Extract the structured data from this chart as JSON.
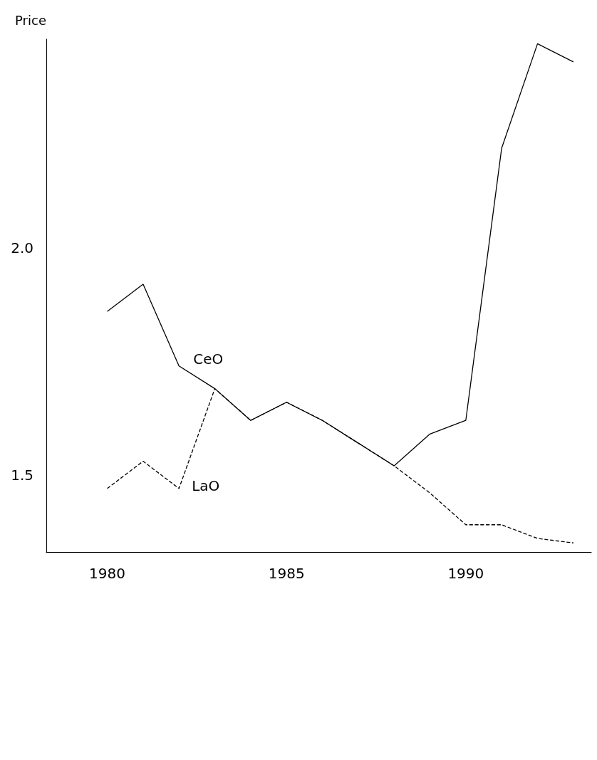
{
  "chart_data": {
    "type": "line",
    "ylabel": "Price",
    "x": [
      1980,
      1981,
      1982,
      1983,
      1984,
      1985,
      1986,
      1987,
      1988,
      1989,
      1990,
      1991,
      1992,
      1993
    ],
    "series": [
      {
        "name": "CeO",
        "color": "#000000",
        "line_style": "solid",
        "values": [
          1.86,
          1.92,
          1.74,
          1.69,
          1.62,
          1.66,
          1.62,
          1.57,
          1.52,
          1.59,
          1.62,
          2.22,
          2.45,
          2.41
        ]
      },
      {
        "name": "LaO",
        "color": "#000000",
        "line_style": "dashed",
        "values": [
          1.47,
          1.53,
          1.47,
          1.69,
          1.62,
          1.66,
          1.62,
          1.57,
          1.52,
          1.46,
          1.39,
          1.39,
          1.36,
          1.35
        ]
      }
    ],
    "xlim": [
      1978.3,
      1993.5
    ],
    "ylim": [
      1.33,
      2.46
    ],
    "xticks": [
      1980,
      1985,
      1990
    ],
    "yticks": [
      {
        "value": 1.5,
        "label": "1.5"
      },
      {
        "value": 2,
        "label": "2.0"
      }
    ],
    "grid": false,
    "legend": false,
    "marker": "none"
  }
}
